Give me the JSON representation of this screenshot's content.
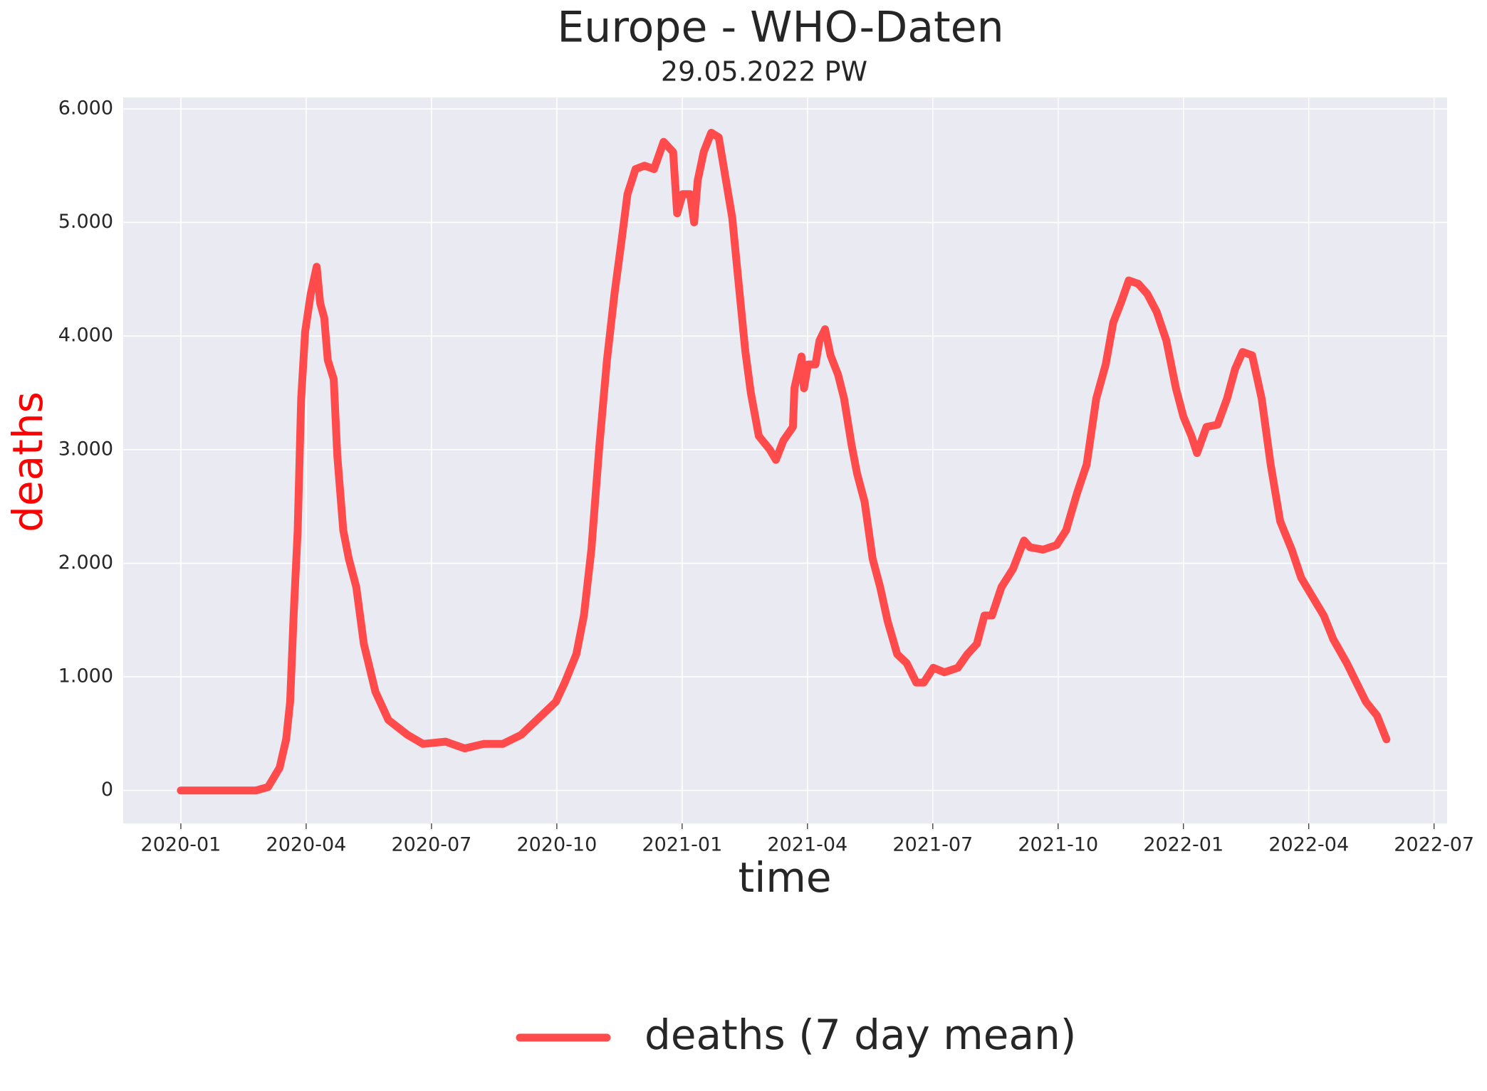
{
  "chart_data": {
    "type": "line",
    "title": "Europe - WHO-Daten",
    "subtitle": "29.05.2022 PW",
    "xlabel": "time",
    "ylabel": "deaths",
    "ylabel_color": "#ff0000",
    "grid": true,
    "legend": "bottom",
    "x": [
      2020.0,
      2020.15,
      2020.174,
      2020.197,
      2020.21,
      2020.218,
      2020.225,
      2020.233,
      2020.24,
      2020.248,
      2020.259,
      2020.271,
      2020.278,
      2020.286,
      2020.293,
      2020.305,
      2020.312,
      2020.324,
      2020.335,
      2020.35,
      2020.365,
      2020.388,
      2020.414,
      2020.452,
      2020.483,
      2020.528,
      2020.566,
      2020.604,
      2020.642,
      2020.679,
      2020.71,
      2020.748,
      2020.766,
      2020.789,
      2020.804,
      2020.819,
      2020.835,
      2020.85,
      2020.865,
      2020.88,
      2020.891,
      2020.907,
      2020.925,
      2020.944,
      2020.963,
      2020.982,
      2020.99,
      2021.001,
      2021.016,
      2021.024,
      2021.031,
      2021.043,
      2021.058,
      2021.073,
      2021.084,
      2021.1,
      2021.111,
      2021.126,
      2021.137,
      2021.153,
      2021.175,
      2021.187,
      2021.202,
      2021.221,
      2021.224,
      2021.238,
      2021.243,
      2021.251,
      2021.266,
      2021.274,
      2021.285,
      2021.296,
      2021.311,
      2021.323,
      2021.338,
      2021.349,
      2021.364,
      2021.38,
      2021.395,
      2021.41,
      2021.429,
      2021.448,
      2021.467,
      2021.482,
      2021.501,
      2021.523,
      2021.55,
      2021.569,
      2021.588,
      2021.603,
      2021.618,
      2021.637,
      2021.66,
      2021.682,
      2021.694,
      2021.72,
      2021.747,
      2021.766,
      2021.788,
      2021.807,
      2021.826,
      2021.845,
      2021.86,
      2021.875,
      2021.891,
      2021.91,
      2021.928,
      2021.947,
      2021.966,
      2021.985,
      2022.0,
      2022.016,
      2022.027,
      2022.046,
      2022.068,
      2022.087,
      2022.103,
      2022.118,
      2022.137,
      2022.156,
      2022.174,
      2022.193,
      2022.216,
      2022.235,
      2022.258,
      2022.28,
      2022.299,
      2022.326,
      2022.345,
      2022.364,
      2022.386,
      2022.405
    ],
    "series": [
      {
        "name": "deaths (7 day mean)",
        "color": "#ff4b4b",
        "values": [
          0,
          0,
          30,
          200,
          450,
          780,
          1540,
          2290,
          3450,
          4040,
          4370,
          4610,
          4290,
          4160,
          3790,
          3620,
          2950,
          2290,
          2040,
          1790,
          1290,
          870,
          620,
          490,
          410,
          430,
          370,
          410,
          410,
          490,
          620,
          780,
          950,
          1200,
          1540,
          2120,
          3040,
          3790,
          4370,
          4870,
          5250,
          5470,
          5500,
          5470,
          5710,
          5620,
          5080,
          5250,
          5250,
          5000,
          5370,
          5620,
          5790,
          5750,
          5460,
          5040,
          4540,
          3870,
          3500,
          3120,
          3000,
          2910,
          3080,
          3200,
          3540,
          3820,
          3540,
          3750,
          3750,
          3960,
          4060,
          3830,
          3660,
          3450,
          3040,
          2790,
          2540,
          2040,
          1790,
          1490,
          1200,
          1120,
          950,
          950,
          1080,
          1040,
          1080,
          1200,
          1290,
          1540,
          1540,
          1790,
          1950,
          2200,
          2140,
          2120,
          2160,
          2290,
          2620,
          2870,
          3450,
          3750,
          4120,
          4290,
          4490,
          4460,
          4370,
          4210,
          3960,
          3540,
          3290,
          3120,
          2970,
          3200,
          3220,
          3450,
          3710,
          3860,
          3830,
          3450,
          2870,
          2370,
          2120,
          1870,
          1700,
          1540,
          1330,
          1120,
          950,
          780,
          660,
          450
        ]
      }
    ],
    "xlim": [
      2019.885,
      2022.526
    ],
    "xticks": [
      {
        "value": 2020.0,
        "label": "2020-01"
      },
      {
        "value": 2020.25,
        "label": "2020-04"
      },
      {
        "value": 2020.5,
        "label": "2020-07"
      },
      {
        "value": 2020.75,
        "label": "2020-10"
      },
      {
        "value": 2021.0,
        "label": "2021-01"
      },
      {
        "value": 2021.25,
        "label": "2021-04"
      },
      {
        "value": 2021.5,
        "label": "2021-07"
      },
      {
        "value": 2021.75,
        "label": "2021-10"
      },
      {
        "value": 2022.0,
        "label": "2022-01"
      },
      {
        "value": 2022.25,
        "label": "2022-04"
      },
      {
        "value": 2022.5,
        "label": "2022-07"
      }
    ],
    "ylim": [
      -290,
      6100
    ],
    "yticks": [
      0,
      {
        "value": 1000,
        "label": "1.000"
      },
      {
        "value": 2000,
        "label": "2.000"
      },
      {
        "value": 3000,
        "label": "3.000"
      },
      {
        "value": 4000,
        "label": "4.000"
      },
      {
        "value": 5000,
        "label": "5.000"
      },
      {
        "value": 6000,
        "label": "6.000"
      }
    ]
  }
}
